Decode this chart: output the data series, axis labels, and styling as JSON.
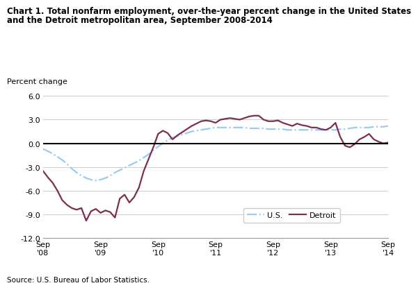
{
  "title_line1": "Chart 1. Total nonfarm employment, over-the-year percent change in the United States",
  "title_line2": "and the Detroit metropolitan area, September 2008-2014",
  "ylabel": "Percent change",
  "source": "Source: U.S. Bureau of Labor Statistics.",
  "ylim": [
    -12.0,
    6.5
  ],
  "yticks": [
    -12.0,
    -9.0,
    -6.0,
    -3.0,
    0.0,
    3.0,
    6.0
  ],
  "xtick_labels": [
    "Sep\n'08",
    "Sep\n'09",
    "Sep\n'10",
    "Sep\n'11",
    "Sep\n'12",
    "Sep\n'13",
    "Sep\n'14"
  ],
  "us_color": "#99CCEE",
  "detroit_color": "#7B2D52",
  "us_months": [
    0,
    1,
    2,
    3,
    4,
    5,
    6,
    7,
    8,
    9,
    10,
    11,
    12,
    13,
    14,
    15,
    16,
    17,
    18,
    19,
    20,
    21,
    22,
    23,
    24,
    25,
    26,
    27,
    28,
    29,
    30,
    31,
    32,
    33,
    34,
    35,
    36,
    37,
    38,
    39,
    40,
    41,
    42,
    43,
    44,
    45,
    46,
    47,
    48,
    49,
    50,
    51,
    52,
    53,
    54,
    55,
    56,
    57,
    58,
    59,
    60,
    61,
    62,
    63,
    64,
    65,
    66,
    67,
    68,
    69,
    70,
    71,
    72
  ],
  "us_values": [
    -0.7,
    -1.0,
    -1.3,
    -1.7,
    -2.1,
    -2.6,
    -3.2,
    -3.7,
    -4.1,
    -4.4,
    -4.6,
    -4.7,
    -4.6,
    -4.4,
    -4.1,
    -3.7,
    -3.4,
    -3.1,
    -2.8,
    -2.5,
    -2.2,
    -1.8,
    -1.4,
    -0.9,
    -0.4,
    0.0,
    0.4,
    0.7,
    0.9,
    1.1,
    1.3,
    1.5,
    1.6,
    1.7,
    1.8,
    1.9,
    2.0,
    2.0,
    2.0,
    2.0,
    2.0,
    2.0,
    2.0,
    1.9,
    1.9,
    1.9,
    1.9,
    1.8,
    1.8,
    1.8,
    1.8,
    1.7,
    1.7,
    1.7,
    1.7,
    1.7,
    1.7,
    1.7,
    1.7,
    1.7,
    1.7,
    1.7,
    1.8,
    1.8,
    1.9,
    2.0,
    2.0,
    2.0,
    2.0,
    2.1,
    2.1,
    2.1,
    2.2
  ],
  "detroit_months": [
    0,
    1,
    2,
    3,
    4,
    5,
    6,
    7,
    8,
    9,
    10,
    11,
    12,
    13,
    14,
    15,
    16,
    17,
    18,
    19,
    20,
    21,
    22,
    23,
    24,
    25,
    26,
    27,
    28,
    29,
    30,
    31,
    32,
    33,
    34,
    35,
    36,
    37,
    38,
    39,
    40,
    41,
    42,
    43,
    44,
    45,
    46,
    47,
    48,
    49,
    50,
    51,
    52,
    53,
    54,
    55,
    56,
    57,
    58,
    59,
    60,
    61,
    62,
    63,
    64,
    65,
    66,
    67,
    68,
    69,
    70,
    71,
    72
  ],
  "detroit_values": [
    -3.5,
    -4.3,
    -5.0,
    -6.0,
    -7.2,
    -7.8,
    -8.2,
    -8.4,
    -8.2,
    -9.8,
    -8.6,
    -8.3,
    -8.8,
    -8.5,
    -8.7,
    -9.4,
    -7.0,
    -6.5,
    -7.5,
    -6.8,
    -5.6,
    -3.5,
    -2.0,
    -0.5,
    1.2,
    1.6,
    1.3,
    0.5,
    1.0,
    1.4,
    1.8,
    2.2,
    2.5,
    2.8,
    2.9,
    2.8,
    2.6,
    3.0,
    3.1,
    3.2,
    3.1,
    3.0,
    3.2,
    3.4,
    3.5,
    3.5,
    3.0,
    2.8,
    2.8,
    2.9,
    2.6,
    2.4,
    2.2,
    2.5,
    2.3,
    2.2,
    2.0,
    2.0,
    1.8,
    1.7,
    2.0,
    2.6,
    0.8,
    -0.3,
    -0.5,
    -0.1,
    0.5,
    0.8,
    1.2,
    0.5,
    0.2,
    0.0,
    0.1
  ]
}
